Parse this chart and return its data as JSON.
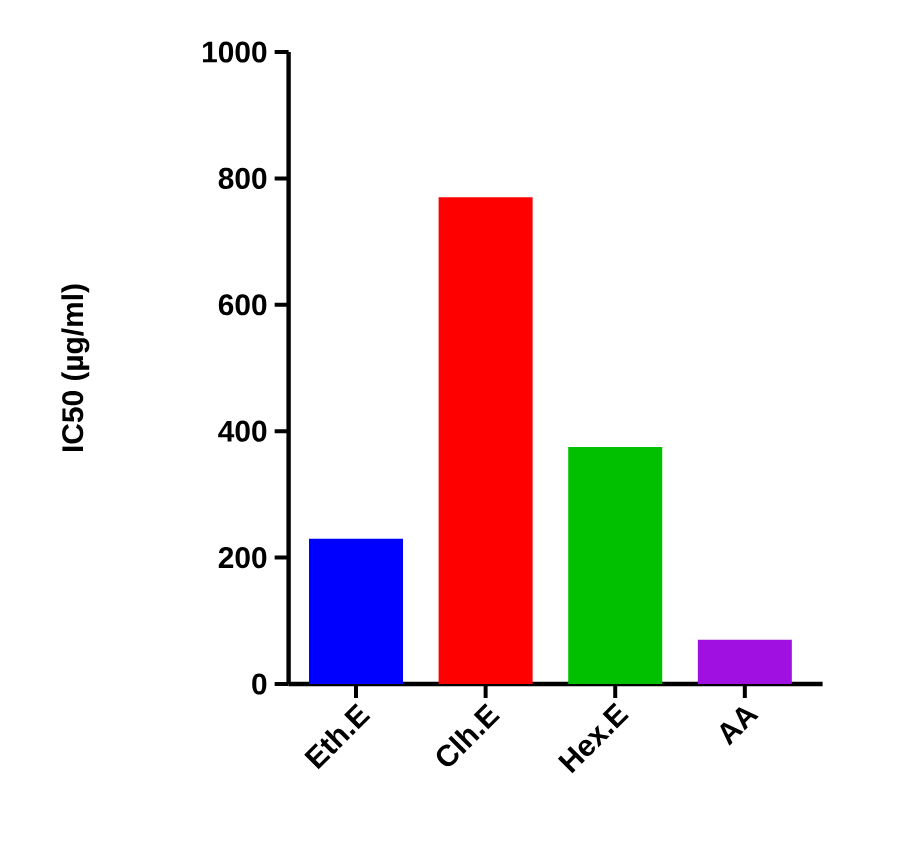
{
  "chart_data": {
    "type": "bar",
    "ylabel": "IC50 (µg/ml)",
    "categories": [
      "Eth.E",
      "Clh.E",
      "Hex.E",
      "AA"
    ],
    "values": [
      230,
      770,
      375,
      70
    ],
    "colors": [
      "#0000ff",
      "#ff0000",
      "#00c000",
      "#a010e0"
    ],
    "ylim": [
      0,
      1000
    ],
    "yticks": [
      0,
      200,
      400,
      600,
      800,
      1000
    ],
    "grid": false
  }
}
